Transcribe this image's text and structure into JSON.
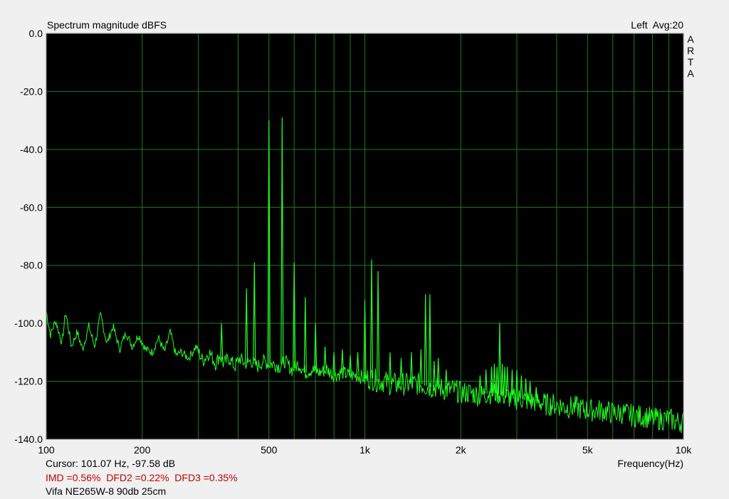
{
  "title": "Spectrum magnitude dBFS",
  "channel_label": "Left  Avg:20",
  "brand": "ARTA",
  "cursor_readout": "Cursor: 101.07 Hz, -97.58 dB",
  "distortion_readout": "IMD =0.56%  DFD2 =0.22%  DFD3 =0.35%",
  "measurement_note": "Vifa NE265W-8 90db 25cm",
  "colors": {
    "background": "#000000",
    "grid": "#1f7a1f",
    "trace": "#22ff22",
    "frame": "#f0f0f0",
    "readout_red": "#c00000"
  },
  "chart_data": {
    "type": "line",
    "title": "Spectrum magnitude dBFS",
    "xlabel": "Frequency(Hz)",
    "ylabel": "",
    "x_scale": "log",
    "xlim": [
      100,
      10000
    ],
    "ylim": [
      -140,
      0
    ],
    "grid": true,
    "x_ticks": [
      {
        "value": 100,
        "label": "100"
      },
      {
        "value": 200,
        "label": "200"
      },
      {
        "value": 500,
        "label": "500"
      },
      {
        "value": 1000,
        "label": "1k"
      },
      {
        "value": 2000,
        "label": "2k"
      },
      {
        "value": 5000,
        "label": "5k"
      },
      {
        "value": 10000,
        "label": "10k"
      }
    ],
    "x_minor_grid": [
      300,
      400,
      600,
      700,
      800,
      900,
      3000,
      4000,
      6000,
      7000,
      8000,
      9000
    ],
    "y_ticks": [
      {
        "value": 0,
        "label": "0.0"
      },
      {
        "value": -20,
        "label": "-20.0"
      },
      {
        "value": -40,
        "label": "-40.0"
      },
      {
        "value": -60,
        "label": "-60.0"
      },
      {
        "value": -80,
        "label": "-80.0"
      },
      {
        "value": -100,
        "label": "-100.0"
      },
      {
        "value": -120,
        "label": "-120.0"
      },
      {
        "value": -140,
        "label": "-140.0"
      }
    ],
    "series": [
      {
        "color": "#22ff22",
        "x": [
          100,
          103,
          107,
          112,
          115,
          120,
          125,
          130,
          136,
          142,
          148,
          155,
          162,
          170,
          178,
          186,
          195,
          205,
          215,
          225,
          235,
          245,
          255,
          265,
          280,
          295,
          310,
          325,
          340,
          350,
          360,
          375,
          390,
          405,
          420,
          440,
          460,
          480,
          500,
          520,
          540,
          560,
          590,
          620,
          650,
          680,
          720,
          760,
          800,
          850,
          900,
          950,
          1000,
          1050,
          1100,
          1150,
          1200,
          1300,
          1400,
          1500,
          1600,
          1700,
          1800,
          1900,
          2000,
          2150,
          2300,
          2450,
          2600,
          2750,
          2900,
          3100,
          3300,
          3500,
          3700,
          4000,
          4300,
          4600,
          5000,
          5500,
          6000,
          6500,
          7000,
          7500,
          8000,
          8500,
          9000,
          9500,
          10000
        ],
        "y": [
          -96,
          -104,
          -99,
          -107,
          -96,
          -108,
          -103,
          -109,
          -101,
          -108,
          -97,
          -107,
          -101,
          -109,
          -103,
          -108,
          -104,
          -109,
          -110,
          -105,
          -110,
          -103,
          -111,
          -110,
          -112,
          -108,
          -113,
          -110,
          -114,
          -111,
          -114,
          -112,
          -115,
          -112,
          -114,
          -113,
          -115,
          -113,
          -114,
          -114,
          -115,
          -113,
          -116,
          -114,
          -117,
          -116,
          -117,
          -116,
          -118,
          -117,
          -118,
          -118,
          -119,
          -119,
          -120,
          -120,
          -121,
          -121,
          -121,
          -121,
          -122,
          -122,
          -123,
          -123,
          -124,
          -124,
          -125,
          -124,
          -124,
          -125,
          -126,
          -126,
          -127,
          -127,
          -128,
          -128,
          -129,
          -129,
          -130,
          -130,
          -131,
          -131,
          -132,
          -132,
          -133,
          -133,
          -133,
          -134,
          -134
        ]
      }
    ],
    "peaks": [
      {
        "x": 355,
        "y": -100
      },
      {
        "x": 425,
        "y": -88
      },
      {
        "x": 450,
        "y": -79
      },
      {
        "x": 500,
        "y": -30
      },
      {
        "x": 550,
        "y": -29
      },
      {
        "x": 600,
        "y": -79
      },
      {
        "x": 650,
        "y": -91
      },
      {
        "x": 700,
        "y": -100
      },
      {
        "x": 1000,
        "y": -92
      },
      {
        "x": 1050,
        "y": -78
      },
      {
        "x": 1100,
        "y": -82
      },
      {
        "x": 1550,
        "y": -90
      },
      {
        "x": 1600,
        "y": -90
      },
      {
        "x": 2650,
        "y": -100
      }
    ],
    "minor_peaks": [
      {
        "x": 750,
        "y": -108
      },
      {
        "x": 800,
        "y": -110
      },
      {
        "x": 850,
        "y": -109
      },
      {
        "x": 900,
        "y": -111
      },
      {
        "x": 950,
        "y": -110
      },
      {
        "x": 1200,
        "y": -110
      },
      {
        "x": 1300,
        "y": -112
      },
      {
        "x": 1400,
        "y": -110
      },
      {
        "x": 1500,
        "y": -109
      },
      {
        "x": 1650,
        "y": -113
      },
      {
        "x": 1700,
        "y": -112
      },
      {
        "x": 1800,
        "y": -116
      },
      {
        "x": 2300,
        "y": -118
      },
      {
        "x": 2400,
        "y": -116
      },
      {
        "x": 2500,
        "y": -115
      },
      {
        "x": 2550,
        "y": -114
      },
      {
        "x": 2600,
        "y": -115
      },
      {
        "x": 2700,
        "y": -114
      },
      {
        "x": 2750,
        "y": -115
      },
      {
        "x": 2800,
        "y": -115
      },
      {
        "x": 2900,
        "y": -116
      },
      {
        "x": 3000,
        "y": -116
      },
      {
        "x": 3100,
        "y": -118
      },
      {
        "x": 3200,
        "y": -119
      },
      {
        "x": 3300,
        "y": -120
      },
      {
        "x": 3450,
        "y": -122
      }
    ]
  }
}
